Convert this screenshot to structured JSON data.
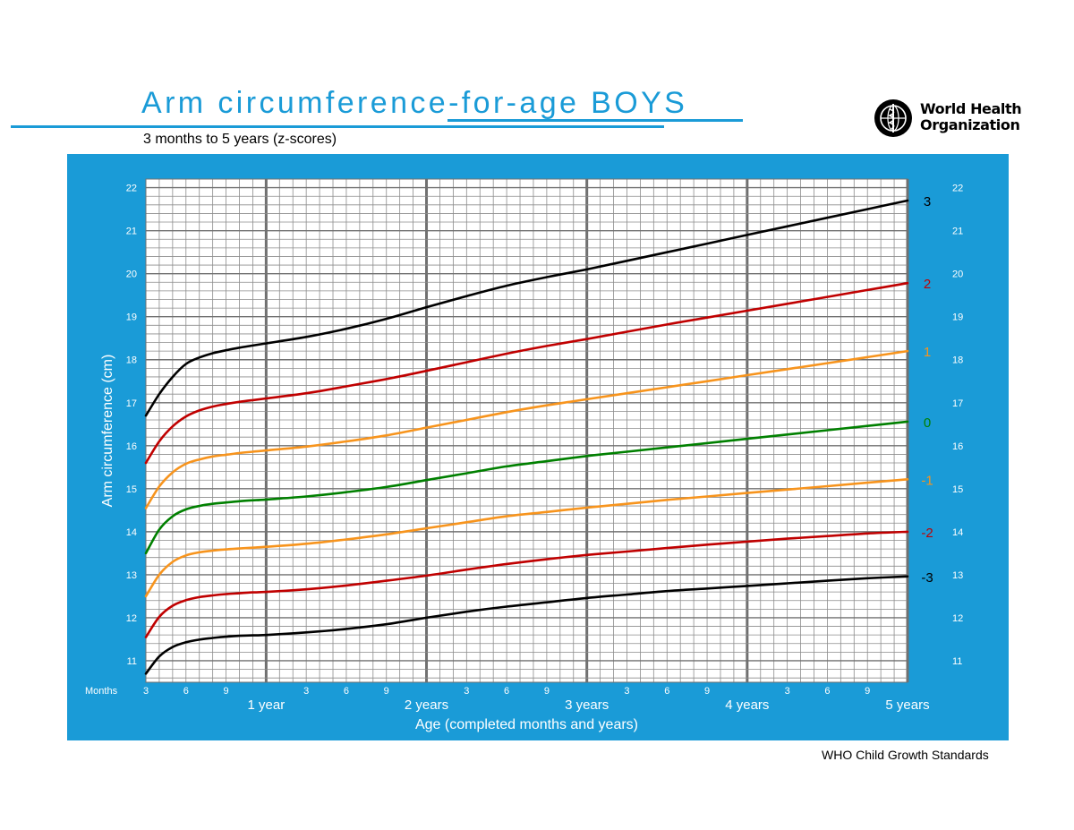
{
  "header": {
    "title": "Arm circumference-for-age  BOYS",
    "subtitle": "3 months to 5 years (z-scores)"
  },
  "logo": {
    "line1": "World Health",
    "line2": "Organization",
    "icon": "who-emblem-icon"
  },
  "footer": {
    "text": "WHO Child Growth Standards"
  },
  "colors": {
    "panel": "#1a9bd7",
    "grid_minor": "#8c8c8c",
    "grid_major": "#707070",
    "z3": "#000000",
    "z2": "#c00000",
    "z1": "#f7941d",
    "z0": "#008000"
  },
  "chart_data": {
    "type": "line",
    "title": "Arm circumference-for-age  BOYS",
    "subtitle": "3 months to 5 years (z-scores)",
    "xlabel": "Age (completed months and years)",
    "ylabel": "Arm circumference (cm)",
    "x_unit_label": "Months",
    "xlim": [
      3,
      60
    ],
    "ylim": [
      10.5,
      22.2
    ],
    "grid": true,
    "minor_ticks": [
      "3",
      "6",
      "9",
      "3",
      "6",
      "9",
      "3",
      "6",
      "9",
      "3",
      "6",
      "9",
      "3",
      "6",
      "9"
    ],
    "minor_tick_months": [
      3,
      6,
      9,
      15,
      18,
      21,
      27,
      30,
      33,
      39,
      42,
      45,
      51,
      54,
      57
    ],
    "major_ticks": [
      "1 year",
      "2 years",
      "3 years",
      "4 years",
      "5 years"
    ],
    "major_tick_months": [
      12,
      24,
      36,
      48,
      60
    ],
    "y_ticks": [
      "11",
      "12",
      "13",
      "14",
      "15",
      "16",
      "17",
      "18",
      "19",
      "20",
      "21",
      "22"
    ],
    "x": [
      3,
      4,
      5,
      6,
      7,
      8,
      9,
      10,
      11,
      12,
      15,
      18,
      21,
      24,
      27,
      30,
      33,
      36,
      39,
      42,
      45,
      48,
      51,
      54,
      57,
      60
    ],
    "series": [
      {
        "name": "3",
        "color_key": "z3",
        "values": [
          16.7,
          17.2,
          17.6,
          17.9,
          18.05,
          18.15,
          18.22,
          18.28,
          18.33,
          18.38,
          18.53,
          18.72,
          18.95,
          19.22,
          19.48,
          19.72,
          19.92,
          20.1,
          20.3,
          20.5,
          20.7,
          20.9,
          21.1,
          21.3,
          21.5,
          21.7
        ]
      },
      {
        "name": "2",
        "color_key": "z2",
        "values": [
          15.6,
          16.1,
          16.45,
          16.68,
          16.82,
          16.91,
          16.97,
          17.02,
          17.06,
          17.1,
          17.22,
          17.38,
          17.55,
          17.74,
          17.94,
          18.14,
          18.32,
          18.48,
          18.65,
          18.82,
          18.98,
          19.14,
          19.3,
          19.46,
          19.62,
          19.78
        ]
      },
      {
        "name": "1",
        "color_key": "z1",
        "values": [
          14.55,
          15.05,
          15.38,
          15.58,
          15.68,
          15.75,
          15.79,
          15.83,
          15.86,
          15.89,
          15.98,
          16.1,
          16.24,
          16.42,
          16.6,
          16.78,
          16.94,
          17.08,
          17.22,
          17.36,
          17.5,
          17.64,
          17.78,
          17.92,
          18.06,
          18.2
        ]
      },
      {
        "name": "0",
        "color_key": "z0",
        "values": [
          13.5,
          14.05,
          14.36,
          14.52,
          14.6,
          14.65,
          14.68,
          14.71,
          14.73,
          14.75,
          14.82,
          14.92,
          15.04,
          15.2,
          15.36,
          15.52,
          15.64,
          15.76,
          15.86,
          15.96,
          16.06,
          16.16,
          16.26,
          16.36,
          16.46,
          16.56
        ]
      },
      {
        "name": "-1",
        "color_key": "z1",
        "values": [
          12.5,
          13.0,
          13.3,
          13.45,
          13.52,
          13.56,
          13.59,
          13.61,
          13.63,
          13.65,
          13.72,
          13.82,
          13.94,
          14.08,
          14.22,
          14.36,
          14.46,
          14.56,
          14.65,
          14.74,
          14.82,
          14.9,
          14.98,
          15.06,
          15.14,
          15.22
        ]
      },
      {
        "name": "-2",
        "color_key": "z2",
        "values": [
          11.55,
          12.02,
          12.28,
          12.41,
          12.48,
          12.52,
          12.55,
          12.57,
          12.59,
          12.6,
          12.66,
          12.75,
          12.86,
          12.98,
          13.12,
          13.25,
          13.36,
          13.46,
          13.54,
          13.62,
          13.7,
          13.77,
          13.84,
          13.9,
          13.96,
          14.0
        ]
      },
      {
        "name": "-3",
        "color_key": "z3",
        "values": [
          10.7,
          11.1,
          11.32,
          11.43,
          11.49,
          11.53,
          11.56,
          11.58,
          11.59,
          11.6,
          11.66,
          11.74,
          11.85,
          12.0,
          12.14,
          12.26,
          12.36,
          12.46,
          12.54,
          12.62,
          12.68,
          12.74,
          12.8,
          12.86,
          12.92,
          12.96
        ]
      }
    ]
  }
}
